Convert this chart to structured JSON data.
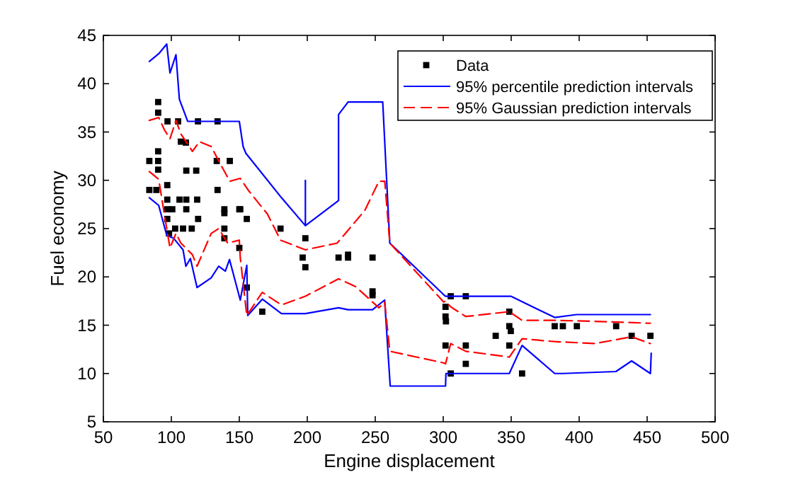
{
  "chart_data": {
    "type": "line",
    "xlabel": "Engine displacement",
    "ylabel": "Fuel economy",
    "xlim": [
      50,
      500
    ],
    "ylim": [
      5,
      45
    ],
    "xticks": [
      50,
      100,
      150,
      200,
      250,
      300,
      350,
      400,
      450,
      500
    ],
    "yticks": [
      5,
      10,
      15,
      20,
      25,
      30,
      35,
      40,
      45
    ],
    "grid": false,
    "legend": "top right",
    "series": [
      {
        "name": "Data",
        "type": "scatter",
        "marker": "square",
        "color": "#000000",
        "x": [
          90.3,
          90.3,
          97.2,
          105,
          119.6,
          134,
          107,
          110.7,
          90.3,
          83.8,
          90.3,
          133.4,
          143,
          90.3,
          111,
          118.3,
          97,
          83.8,
          89,
          134,
          97,
          106,
          111,
          119,
          97,
          100.7,
          111,
          139,
          139,
          150,
          97,
          119.7,
          102.8,
          108.6,
          115,
          139,
          98.3,
          139,
          150,
          155.5,
          166.9,
          150.7,
          155.5,
          180.3,
          198.6,
          196.6,
          198.6,
          223,
          230,
          230,
          248,
          248,
          248,
          301.7,
          301.7,
          302,
          305.5,
          316.6,
          301.7,
          305.5,
          316.6,
          316.6,
          338.6,
          348.6,
          348.6,
          349.7,
          348.6,
          358,
          382,
          388,
          398.3,
          427.2,
          438.6,
          452.4
        ],
        "values": [
          38.1,
          37,
          36.1,
          36.1,
          36.1,
          36.1,
          34,
          33.9,
          33,
          32,
          32,
          32,
          32,
          31.1,
          31,
          31,
          29.5,
          29,
          29,
          29,
          28,
          28,
          28,
          28,
          27,
          27,
          27,
          27,
          26.6,
          27,
          26,
          26,
          25,
          25,
          25,
          25,
          24.5,
          24,
          23,
          18.9,
          16.4,
          27,
          26,
          25,
          24,
          22,
          21,
          22,
          22.3,
          22,
          22,
          18.5,
          18.1,
          16.9,
          15.9,
          15.4,
          18,
          18,
          12.9,
          10,
          12.9,
          11,
          13.9,
          16.4,
          14.9,
          14.4,
          12.9,
          10,
          14.9,
          14.9,
          14.9,
          14.9,
          13.9,
          13.9
        ]
      },
      {
        "name": "95% percentile prediction intervals",
        "color": "#0000ff",
        "line_style": "solid",
        "x": [
          83.8,
          90.7,
          96.6,
          99,
          103.4,
          105.9,
          112,
          150,
          152.8,
          154.8,
          181,
          198.6,
          198.6,
          198.6,
          223,
          223,
          230,
          255.5,
          260.7,
          300,
          301.7,
          349.7,
          382,
          398,
          452.4
        ],
        "values": [
          42.3,
          43.1,
          44.1,
          41.1,
          43,
          38.4,
          36.1,
          36.1,
          33.5,
          32.8,
          28.2,
          25.3,
          30,
          25.3,
          27.9,
          36.8,
          38.1,
          38.1,
          23.5,
          18.2,
          18,
          18,
          15.8,
          16.1,
          16.1
        ]
      },
      {
        "color": "#0000ff",
        "line_style": "solid",
        "x": [
          83.8,
          90.7,
          96.6,
          101.7,
          108.6,
          110.7,
          114,
          118.9,
          129.3,
          134.8,
          139.7,
          142.8,
          150.7,
          155.5,
          156.2,
          166.9,
          181,
          198.6,
          223,
          230,
          248,
          256.9,
          261,
          301.7,
          302,
          316.6,
          348.6,
          358,
          382,
          388,
          427,
          438.6,
          452.4,
          453
        ],
        "values": [
          28.2,
          27.4,
          24.3,
          24,
          22.8,
          21.1,
          21.9,
          18.9,
          19.9,
          21.1,
          20.6,
          21.8,
          17.6,
          21.2,
          16,
          17.7,
          16.2,
          16.2,
          16.8,
          16.6,
          16.6,
          17.6,
          8.7,
          8.7,
          10,
          10,
          10,
          12.9,
          10,
          10,
          10.2,
          11.3,
          10,
          12.1
        ]
      },
      {
        "name": "95% Gaussian prediction intervals",
        "color": "#ff0000",
        "line_style": "dashed",
        "x": [
          83.8,
          90.7,
          95,
          99,
          103.4,
          107,
          115.5,
          120.7,
          129.3,
          134.5,
          143,
          150.7,
          157,
          170.7,
          180.3,
          198.6,
          222,
          242.4,
          252.7,
          257,
          260.7,
          300.3,
          301.7,
          305.5,
          316.6,
          348.6,
          358,
          382,
          411.7,
          452.4
        ],
        "values": [
          36.2,
          36.5,
          35.2,
          34.3,
          36.2,
          34.8,
          33,
          34,
          33.5,
          32.1,
          29.9,
          30.2,
          28.9,
          26.5,
          23.8,
          22.8,
          23.5,
          26.9,
          29.9,
          29.9,
          23.5,
          17.4,
          17.5,
          16.9,
          15.9,
          16.4,
          15.5,
          15.5,
          15.4,
          15.2
        ]
      },
      {
        "color": "#ff0000",
        "line_style": "dashed",
        "x": [
          83.8,
          90.7,
          96.6,
          99,
          103.4,
          107,
          115.5,
          118.9,
          129.3,
          134.8,
          141.4,
          150,
          150.7,
          155.5,
          166.9,
          181,
          198.6,
          223,
          235.5,
          252.7,
          256.9,
          260.7,
          300.3,
          301.7,
          305.5,
          316.6,
          348.6,
          358,
          382,
          411.7,
          438.6,
          452.4
        ],
        "values": [
          30.9,
          30.1,
          25,
          23,
          24.5,
          23.5,
          22.3,
          21.1,
          24.5,
          25,
          23.5,
          23.8,
          22,
          16,
          18.4,
          17.1,
          18,
          19.8,
          19,
          16.8,
          17.4,
          12.3,
          11.1,
          11,
          13.1,
          12.3,
          11.7,
          13.6,
          13.3,
          13.1,
          13.8,
          13.1
        ]
      }
    ]
  }
}
